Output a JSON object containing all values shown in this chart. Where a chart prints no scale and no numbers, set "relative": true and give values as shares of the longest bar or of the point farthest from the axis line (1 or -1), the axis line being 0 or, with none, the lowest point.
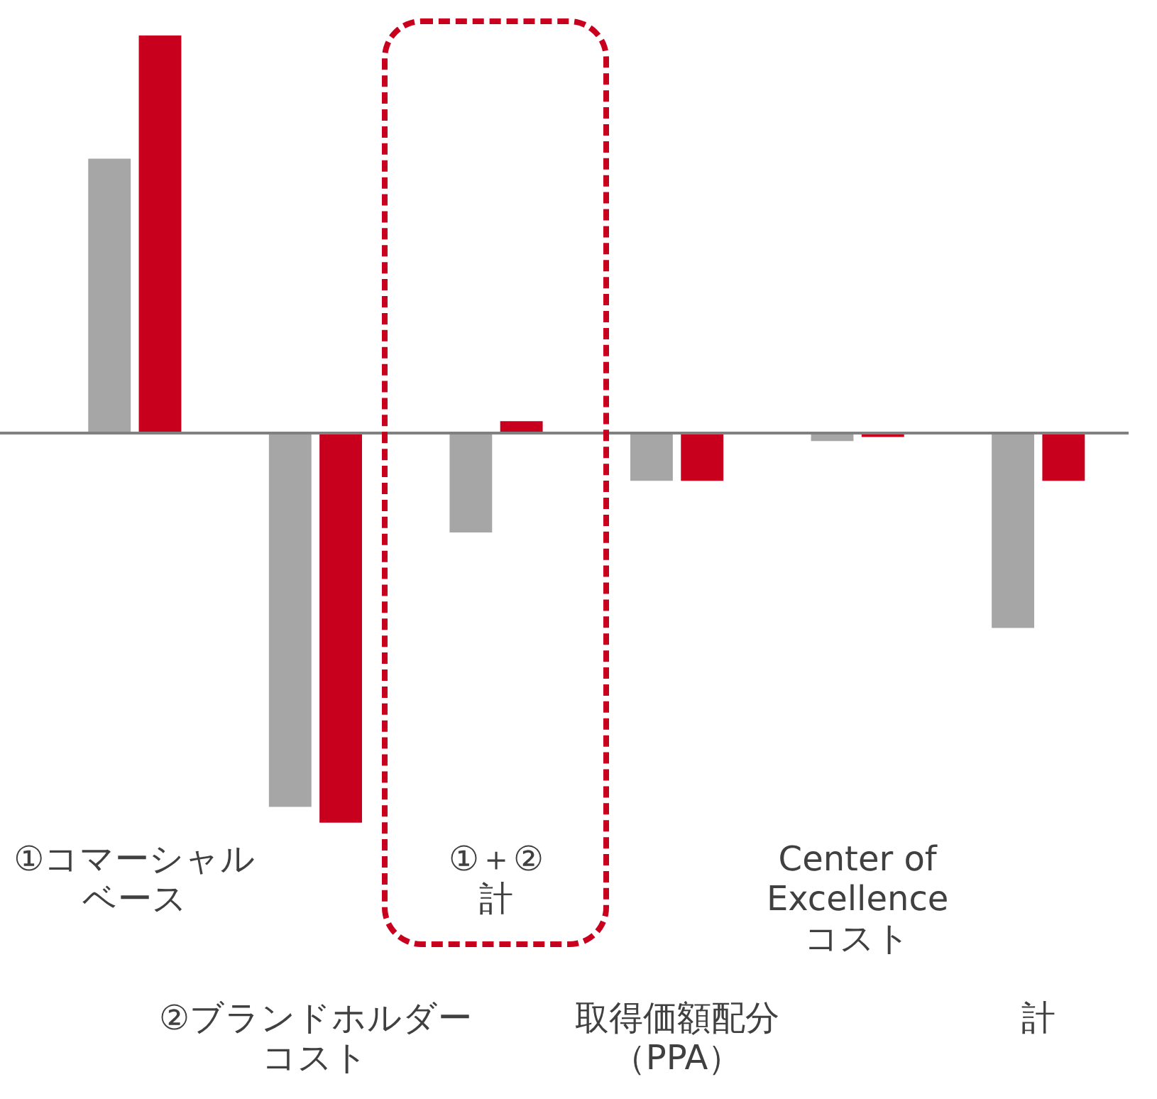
{
  "chart_data": {
    "type": "bar",
    "relative": true,
    "categories": [
      "①コマーシャルベース",
      "②ブランドホルダーコスト",
      "①＋②計",
      "取得価額配分（PPA）",
      "Center of Excellence コスト",
      "計"
    ],
    "series": [
      {
        "color": "#a6a6a6",
        "values": [
          0.69,
          -0.94,
          -0.25,
          -0.12,
          -0.02,
          -0.49
        ]
      },
      {
        "color": "#c8001e",
        "values": [
          1,
          -0.98,
          0.03,
          -0.12,
          -0.01,
          -0.12
        ]
      }
    ],
    "legend": false,
    "grid": false
  }
}
